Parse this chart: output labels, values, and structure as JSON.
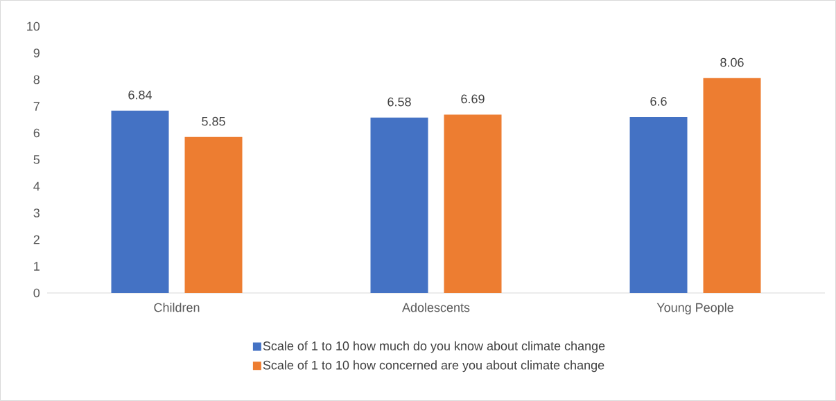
{
  "chart_data": {
    "type": "bar",
    "categories": [
      "Children",
      "Adolescents",
      "Young People"
    ],
    "series": [
      {
        "name": "Scale of 1 to 10 how much do you know about climate change",
        "color": "#4472c4",
        "values": [
          6.84,
          6.58,
          6.6
        ]
      },
      {
        "name": "Scale of 1 to 10 how concerned are you about climate change",
        "color": "#ed7d31",
        "values": [
          5.85,
          6.69,
          8.06
        ]
      }
    ],
    "ylim": [
      0,
      10
    ],
    "yticks": [
      0,
      1,
      2,
      3,
      4,
      5,
      6,
      7,
      8,
      9,
      10
    ],
    "data_labels": true,
    "legend": "bottom"
  }
}
